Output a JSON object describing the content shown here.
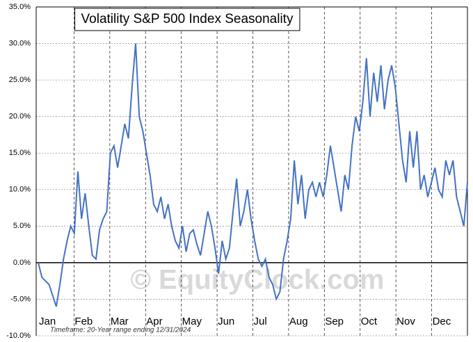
{
  "chart_data": {
    "type": "line",
    "title": "Volatility S&P 500 Index Seasonality",
    "footnote": "Timeframe: 20-Year range ending 12/31/2024",
    "watermark": "© EquityClock.com",
    "x_axis_labels": [
      "Jan",
      "Feb",
      "Mar",
      "Apr",
      "May",
      "Jun",
      "Jul",
      "Aug",
      "Sep",
      "Oct",
      "Nov",
      "Dec"
    ],
    "series": [
      {
        "name": "Volatility S&P 500 Index",
        "color": "#4472c4",
        "values": [
          0,
          -2,
          -2.5,
          -3,
          -4.5,
          -6,
          -3,
          0.5,
          3,
          5,
          4,
          12.5,
          6,
          9.5,
          5,
          1,
          0.5,
          4.5,
          6,
          7,
          15,
          16,
          13,
          16,
          19,
          17,
          24,
          30,
          20,
          18,
          15,
          12,
          8,
          7,
          9,
          6,
          8,
          5,
          3,
          2,
          5,
          1.5,
          4,
          4.5,
          2.5,
          1,
          4,
          7,
          5,
          2,
          -1.5,
          3,
          0.5,
          2,
          7,
          11.5,
          5,
          7,
          10,
          6,
          3,
          0.5,
          -0.5,
          0.5,
          -2,
          -3,
          -5,
          -4,
          0.5,
          3,
          6,
          14,
          8,
          12,
          6,
          10,
          11,
          9,
          11,
          9,
          12,
          16,
          13,
          10,
          7,
          12,
          10,
          16,
          20,
          18,
          22,
          28,
          20,
          26,
          22,
          27,
          21,
          25,
          27,
          24,
          19,
          14,
          11,
          18,
          13,
          18,
          10,
          12,
          9,
          11,
          13,
          10,
          9,
          14,
          12,
          14,
          9,
          7,
          5,
          11
        ]
      }
    ],
    "ylim": [
      -10,
      35
    ],
    "yticks": [
      {
        "value": -10,
        "label": "-10.0%"
      },
      {
        "value": -5,
        "label": "-5.0%"
      },
      {
        "value": 0,
        "label": "0.0%"
      },
      {
        "value": 5,
        "label": "5.0%"
      },
      {
        "value": 10,
        "label": "10.0%"
      },
      {
        "value": 15,
        "label": "15.0%"
      },
      {
        "value": 20,
        "label": "20.0%"
      },
      {
        "value": 25,
        "label": "25.0%"
      },
      {
        "value": 30,
        "label": "30.0%"
      },
      {
        "value": 35,
        "label": "35.0%"
      }
    ],
    "grid": true
  }
}
